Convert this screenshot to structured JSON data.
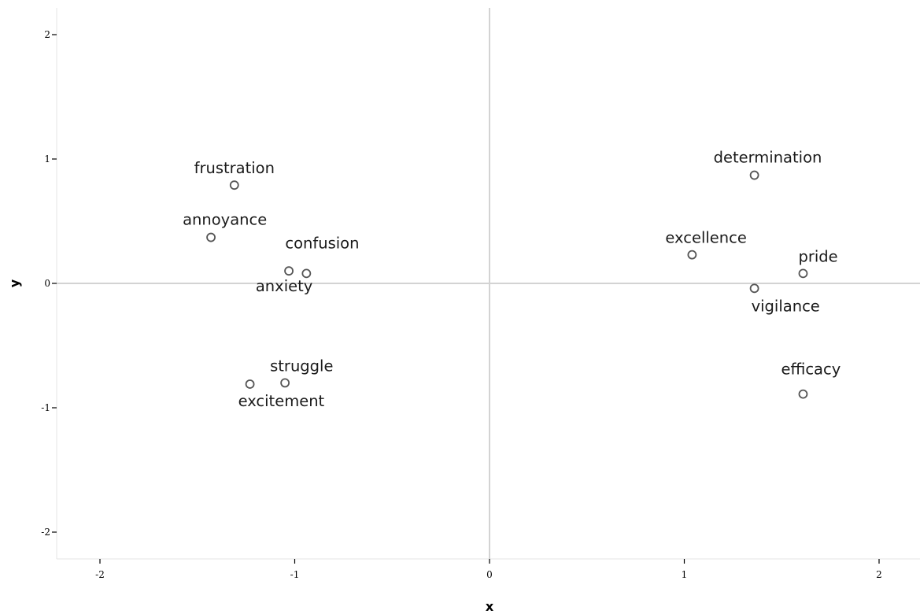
{
  "chart_data": {
    "type": "scatter",
    "xlabel": "x",
    "ylabel": "y",
    "xlim": [
      -2.2,
      2.2
    ],
    "ylim": [
      -2.25,
      2.2
    ],
    "xticks": [
      -2,
      -1,
      0,
      1,
      2
    ],
    "yticks": [
      -2,
      -1,
      0,
      1,
      2
    ],
    "reference_lines": {
      "x": 0,
      "y": 0
    },
    "grid": false,
    "points": [
      {
        "label": "frustration",
        "x": -1.31,
        "y": 0.79
      },
      {
        "label": "annoyance",
        "x": -1.43,
        "y": 0.37
      },
      {
        "label": "confusion",
        "x": -0.94,
        "y": 0.08
      },
      {
        "label": "anxiety",
        "x": -1.03,
        "y": 0.1
      },
      {
        "label": "struggle",
        "x": -1.05,
        "y": -0.8
      },
      {
        "label": "excitement",
        "x": -1.23,
        "y": -0.81
      },
      {
        "label": "determination",
        "x": 1.36,
        "y": 0.87
      },
      {
        "label": "excellence",
        "x": 1.04,
        "y": 0.23
      },
      {
        "label": "pride",
        "x": 1.61,
        "y": 0.08
      },
      {
        "label": "vigilance",
        "x": 1.36,
        "y": -0.04
      },
      {
        "label": "efficacy",
        "x": 1.61,
        "y": -0.89
      }
    ]
  }
}
